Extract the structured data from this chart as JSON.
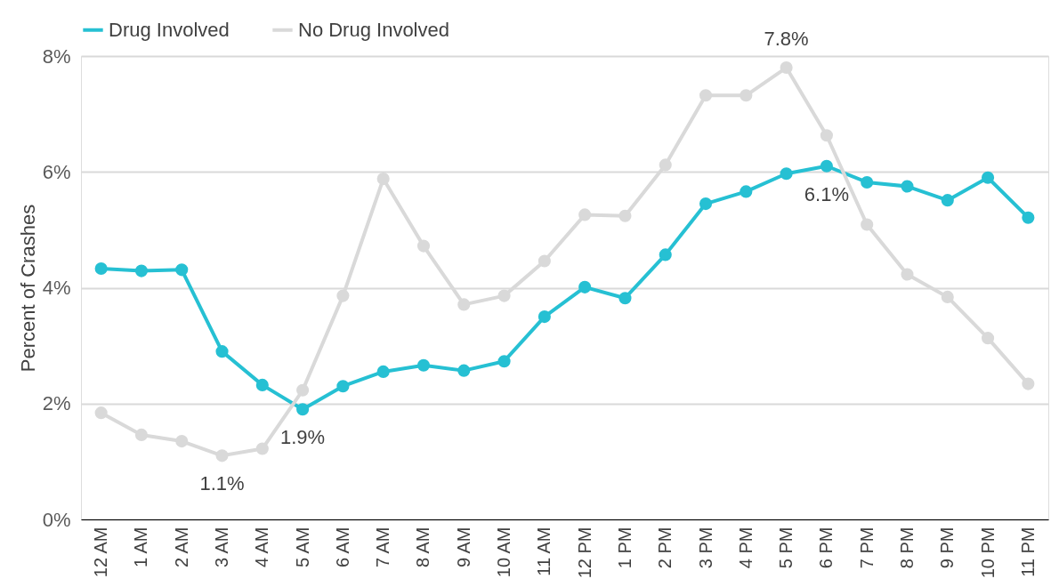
{
  "chart_data": {
    "type": "line",
    "ylabel": "Percent of Crashes",
    "categories": [
      "12 AM",
      "1 AM",
      "2 AM",
      "3 AM",
      "4 AM",
      "5 AM",
      "6 AM",
      "7 AM",
      "8 AM",
      "9 AM",
      "10 AM",
      "11 AM",
      "12 PM",
      "1 PM",
      "2 PM",
      "3 PM",
      "4 PM",
      "5 PM",
      "6 PM",
      "7 PM",
      "8 PM",
      "9 PM",
      "10 PM",
      "11 PM"
    ],
    "series": [
      {
        "name": "Drug Involved",
        "color": "#26c0d3",
        "values": [
          4.33,
          4.29,
          4.31,
          2.9,
          2.32,
          1.9,
          2.3,
          2.55,
          2.66,
          2.57,
          2.73,
          3.5,
          4.01,
          3.82,
          4.57,
          5.45,
          5.66,
          5.97,
          6.1,
          5.82,
          5.75,
          5.51,
          5.9,
          5.21
        ]
      },
      {
        "name": "No Drug Involved",
        "color": "#d9d9d9",
        "values": [
          1.84,
          1.46,
          1.35,
          1.1,
          1.22,
          2.23,
          3.86,
          5.88,
          4.72,
          3.71,
          3.86,
          4.46,
          5.26,
          5.24,
          6.12,
          7.32,
          7.32,
          7.8,
          6.63,
          5.09,
          4.23,
          3.84,
          3.13,
          2.34
        ]
      }
    ],
    "ylim": [
      0,
      8
    ],
    "yticks": [
      {
        "value": 0,
        "label": "0%"
      },
      {
        "value": 2,
        "label": "2%"
      },
      {
        "value": 4,
        "label": "4%"
      },
      {
        "value": 6,
        "label": "6%"
      },
      {
        "value": 8,
        "label": "8%"
      }
    ],
    "grid": "y",
    "legend": "top",
    "marker": "circle",
    "line_style": "solid",
    "annotations": [
      {
        "text": "1.1%",
        "x": "3 AM",
        "y": 1.1
      },
      {
        "text": "1.9%",
        "x": "5 AM",
        "y": 1.9
      },
      {
        "text": "7.8%",
        "x": "5 PM",
        "y": 7.8
      },
      {
        "text": "6.1%",
        "x": "6 PM",
        "y": 6.1
      }
    ]
  }
}
